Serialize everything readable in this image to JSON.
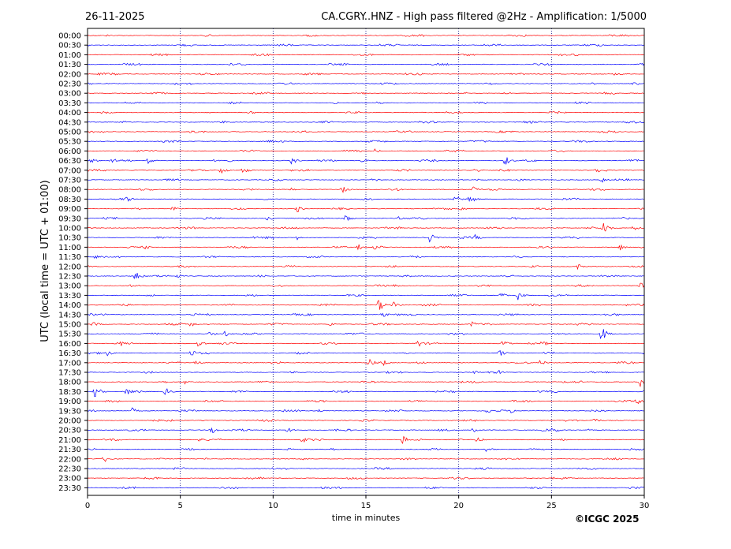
{
  "header": {
    "date": "26-11-2025",
    "title": "CA.CGRY..HNZ - High pass filtered @2Hz - Amplification: 1/5000"
  },
  "footer": {
    "copyright": "©ICGC 2025"
  },
  "colors": {
    "even_hour_trace": "#ff0000",
    "half_hour_trace": "#0000ff",
    "grid": "#000080"
  },
  "chart_data": {
    "type": "line",
    "title": "CA.CGRY..HNZ - High pass filtered @2Hz - Amplification: 1/5000",
    "xlabel": "time in minutes",
    "ylabel": "UTC (local time = UTC + 01:00)",
    "xlim": [
      0,
      30
    ],
    "xticks": [
      0,
      5,
      10,
      15,
      20,
      25,
      30
    ],
    "grid": "vertical dotted lines at every 5 minutes",
    "rows": [
      "00:00",
      "00:30",
      "01:00",
      "01:30",
      "02:00",
      "02:30",
      "03:00",
      "03:30",
      "04:00",
      "04:30",
      "05:00",
      "05:30",
      "06:00",
      "06:30",
      "07:00",
      "07:30",
      "08:00",
      "08:30",
      "09:00",
      "09:30",
      "10:00",
      "10:30",
      "11:00",
      "11:30",
      "12:00",
      "12:30",
      "13:00",
      "13:30",
      "14:00",
      "14:30",
      "15:00",
      "15:30",
      "16:00",
      "16:30",
      "17:00",
      "17:30",
      "18:00",
      "18:30",
      "19:00",
      "19:30",
      "20:00",
      "20:30",
      "21:00",
      "21:30",
      "22:00",
      "22:30",
      "23:00",
      "23:30"
    ],
    "events": [
      {
        "row": "06:00",
        "t": 15.5,
        "amp": 3
      },
      {
        "row": "06:30",
        "t": 0.2,
        "amp": 4
      },
      {
        "row": "06:30",
        "t": 1.3,
        "amp": 4
      },
      {
        "row": "06:30",
        "t": 3.3,
        "amp": 5
      },
      {
        "row": "06:30",
        "t": 11.0,
        "amp": 5
      },
      {
        "row": "06:30",
        "t": 14.8,
        "amp": 3
      },
      {
        "row": "06:30",
        "t": 22.5,
        "amp": 7
      },
      {
        "row": "07:00",
        "t": 7.2,
        "amp": 5
      },
      {
        "row": "07:00",
        "t": 8.4,
        "amp": 5
      },
      {
        "row": "07:00",
        "t": 20.9,
        "amp": 3
      },
      {
        "row": "07:00",
        "t": 27.4,
        "amp": 5
      },
      {
        "row": "07:30",
        "t": 27.7,
        "amp": 4
      },
      {
        "row": "08:00",
        "t": 10.9,
        "amp": 3
      },
      {
        "row": "08:00",
        "t": 13.7,
        "amp": 5
      },
      {
        "row": "08:00",
        "t": 16.6,
        "amp": 3
      },
      {
        "row": "08:00",
        "t": 20.8,
        "amp": 6
      },
      {
        "row": "08:30",
        "t": 2.1,
        "amp": 4
      },
      {
        "row": "08:30",
        "t": 19.8,
        "amp": 6
      },
      {
        "row": "08:30",
        "t": 20.6,
        "amp": 6
      },
      {
        "row": "09:00",
        "t": 4.6,
        "amp": 3
      },
      {
        "row": "09:00",
        "t": 11.3,
        "amp": 5
      },
      {
        "row": "09:00",
        "t": 20.1,
        "amp": 3
      },
      {
        "row": "09:30",
        "t": 9.7,
        "amp": 3
      },
      {
        "row": "09:30",
        "t": 13.9,
        "amp": 5
      },
      {
        "row": "09:30",
        "t": 16.8,
        "amp": 3
      },
      {
        "row": "10:00",
        "t": 27.8,
        "amp": 9
      },
      {
        "row": "10:00",
        "t": 29.4,
        "amp": 4
      },
      {
        "row": "10:30",
        "t": 11.3,
        "amp": 3
      },
      {
        "row": "10:30",
        "t": 18.4,
        "amp": 7
      },
      {
        "row": "10:30",
        "t": 20.9,
        "amp": 4
      },
      {
        "row": "11:00",
        "t": 3.1,
        "amp": 3
      },
      {
        "row": "11:00",
        "t": 14.6,
        "amp": 4
      },
      {
        "row": "11:00",
        "t": 15.5,
        "amp": 5
      },
      {
        "row": "11:00",
        "t": 28.7,
        "amp": 4
      },
      {
        "row": "11:30",
        "t": 0.4,
        "amp": 3
      },
      {
        "row": "12:00",
        "t": 26.4,
        "amp": 4
      },
      {
        "row": "12:30",
        "t": 2.6,
        "amp": 7
      },
      {
        "row": "12:30",
        "t": 4.8,
        "amp": 3
      },
      {
        "row": "13:00",
        "t": 16.5,
        "amp": 3
      },
      {
        "row": "13:00",
        "t": 29.8,
        "amp": 6
      },
      {
        "row": "13:30",
        "t": 22.3,
        "amp": 4
      },
      {
        "row": "13:30",
        "t": 23.2,
        "amp": 6
      },
      {
        "row": "14:00",
        "t": 15.7,
        "amp": 8
      },
      {
        "row": "14:00",
        "t": 16.5,
        "amp": 4
      },
      {
        "row": "14:30",
        "t": 15.9,
        "amp": 4
      },
      {
        "row": "14:30",
        "t": 28.3,
        "amp": 3
      },
      {
        "row": "15:00",
        "t": 0.3,
        "amp": 4
      },
      {
        "row": "15:00",
        "t": 5.5,
        "amp": 5
      },
      {
        "row": "15:00",
        "t": 13.1,
        "amp": 3
      },
      {
        "row": "15:00",
        "t": 20.7,
        "amp": 4
      },
      {
        "row": "15:30",
        "t": 6.6,
        "amp": 3
      },
      {
        "row": "15:30",
        "t": 7.4,
        "amp": 4
      },
      {
        "row": "15:30",
        "t": 27.7,
        "amp": 10
      },
      {
        "row": "16:00",
        "t": 1.8,
        "amp": 4
      },
      {
        "row": "16:00",
        "t": 6.0,
        "amp": 6
      },
      {
        "row": "16:00",
        "t": 17.8,
        "amp": 5
      },
      {
        "row": "16:00",
        "t": 22.4,
        "amp": 5
      },
      {
        "row": "16:00",
        "t": 24.5,
        "amp": 4
      },
      {
        "row": "16:30",
        "t": 1.0,
        "amp": 5
      },
      {
        "row": "16:30",
        "t": 5.6,
        "amp": 5
      },
      {
        "row": "16:30",
        "t": 22.2,
        "amp": 5
      },
      {
        "row": "17:00",
        "t": 5.8,
        "amp": 4
      },
      {
        "row": "17:00",
        "t": 15.2,
        "amp": 6
      },
      {
        "row": "17:00",
        "t": 15.9,
        "amp": 5
      },
      {
        "row": "17:00",
        "t": 24.4,
        "amp": 4
      },
      {
        "row": "17:30",
        "t": 20.8,
        "amp": 3
      },
      {
        "row": "17:30",
        "t": 22.2,
        "amp": 3
      },
      {
        "row": "18:00",
        "t": 5.2,
        "amp": 3
      },
      {
        "row": "18:00",
        "t": 20.8,
        "amp": 3
      },
      {
        "row": "18:00",
        "t": 29.8,
        "amp": 7
      },
      {
        "row": "18:30",
        "t": 0.4,
        "amp": 8
      },
      {
        "row": "18:30",
        "t": 2.1,
        "amp": 5
      },
      {
        "row": "18:30",
        "t": 4.2,
        "amp": 5
      },
      {
        "row": "19:00",
        "t": 29.6,
        "amp": 5
      },
      {
        "row": "19:30",
        "t": 2.4,
        "amp": 4
      },
      {
        "row": "19:30",
        "t": 12.4,
        "amp": 3
      },
      {
        "row": "19:30",
        "t": 21.5,
        "amp": 4
      },
      {
        "row": "19:30",
        "t": 22.8,
        "amp": 4
      },
      {
        "row": "20:00",
        "t": 27.3,
        "amp": 4
      },
      {
        "row": "20:30",
        "t": 6.7,
        "amp": 5
      },
      {
        "row": "20:30",
        "t": 10.8,
        "amp": 4
      },
      {
        "row": "20:30",
        "t": 20.8,
        "amp": 6
      },
      {
        "row": "20:30",
        "t": 25.1,
        "amp": 5
      },
      {
        "row": "21:00",
        "t": 5.9,
        "amp": 4
      },
      {
        "row": "21:00",
        "t": 11.6,
        "amp": 5
      },
      {
        "row": "21:00",
        "t": 17.0,
        "amp": 6
      },
      {
        "row": "21:00",
        "t": 21.0,
        "amp": 4
      },
      {
        "row": "21:30",
        "t": 21.5,
        "amp": 4
      },
      {
        "row": "22:00",
        "t": 0.9,
        "amp": 5
      }
    ]
  }
}
